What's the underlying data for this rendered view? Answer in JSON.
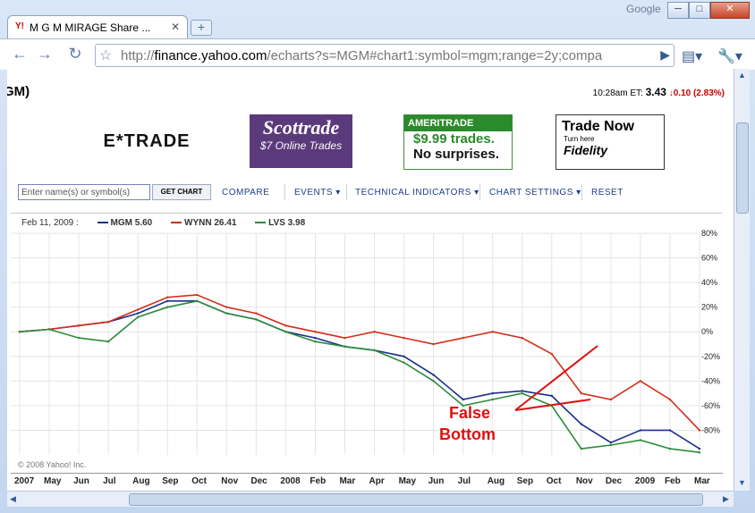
{
  "browser": {
    "tab_title": "M G M MIRAGE Share ...",
    "tab_favicon": "Y!",
    "brand_label": "Google",
    "url_prefix": "http://",
    "url_host": "finance.yahoo.com",
    "url_rest": "/echarts?s=MGM#chart1:symbol=mgm;range=2y;compa",
    "icons": [
      "back-icon",
      "forward-icon",
      "reload-icon",
      "star-icon",
      "go-icon",
      "page-menu-icon",
      "wrench-icon",
      "new-tab-icon",
      "close-icon"
    ]
  },
  "page": {
    "ticker": "GM)",
    "quote": {
      "time": "10:28am ET:",
      "price": "3.43",
      "change": "0.10 (2.83%)",
      "change_color": "#cc0000"
    },
    "ads": {
      "etrade": "E*TRADE",
      "scottrade_brand": "Scottrade",
      "scottrade_tag": "$7 Online Trades",
      "ameritrade_brand": "AMERITRADE",
      "ameritrade_l1": "$9.99 trades.",
      "ameritrade_l2": "No surprises.",
      "fidelity_title": "Trade Now",
      "fidelity_sub": "Turn here",
      "fidelity_brand": "Fidelity"
    },
    "controls": {
      "search_placeholder": "Enter name(s) or symbol(s)",
      "get_chart": "GET CHART",
      "compare": "COMPARE",
      "events": "EVENTS ▾",
      "technical": "TECHNICAL INDICATORS ▾",
      "settings": "CHART SETTINGS ▾",
      "reset": "RESET"
    }
  },
  "chart_data": {
    "type": "line",
    "legend_date": "Feb 11, 2009 :",
    "copyright": "© 2008 Yahoo! Inc.",
    "annotation": [
      "False",
      "Bottom"
    ],
    "x_labels": [
      "2007",
      "May",
      "Jun",
      "Jul",
      "Aug",
      "Sep",
      "Oct",
      "Nov",
      "Dec",
      "2008",
      "Feb",
      "Mar",
      "Apr",
      "May",
      "Jun",
      "Jul",
      "Aug",
      "Sep",
      "Oct",
      "Nov",
      "Dec",
      "2009",
      "Feb",
      "Mar"
    ],
    "y_labels": [
      "80%",
      "60%",
      "40%",
      "20%",
      "0%",
      "-20%",
      "-40%",
      "-60%",
      "-80%"
    ],
    "ylim": [
      -100,
      80
    ],
    "series": [
      {
        "name": "MGM",
        "value_label": "5.60",
        "color": "#1a2f8f",
        "values": [
          0,
          2,
          5,
          8,
          15,
          25,
          25,
          15,
          10,
          0,
          -5,
          -12,
          -15,
          -20,
          -35,
          -55,
          -50,
          -48,
          -52,
          -75,
          -90,
          -80,
          -80,
          -95
        ]
      },
      {
        "name": "WYNN",
        "value_label": "26.41",
        "color": "#d42d1a",
        "values": [
          0,
          2,
          5,
          8,
          18,
          28,
          30,
          20,
          15,
          5,
          0,
          -5,
          0,
          -5,
          -10,
          -5,
          0,
          -5,
          -18,
          -50,
          -55,
          -40,
          -55,
          -80
        ]
      },
      {
        "name": "LVS",
        "value_label": "3.98",
        "color": "#2a8c3a",
        "values": [
          0,
          2,
          -5,
          -8,
          12,
          20,
          25,
          15,
          10,
          0,
          -8,
          -12,
          -15,
          -25,
          -40,
          -60,
          -55,
          -50,
          -60,
          -95,
          -92,
          -88,
          -95,
          -98
        ]
      }
    ]
  }
}
